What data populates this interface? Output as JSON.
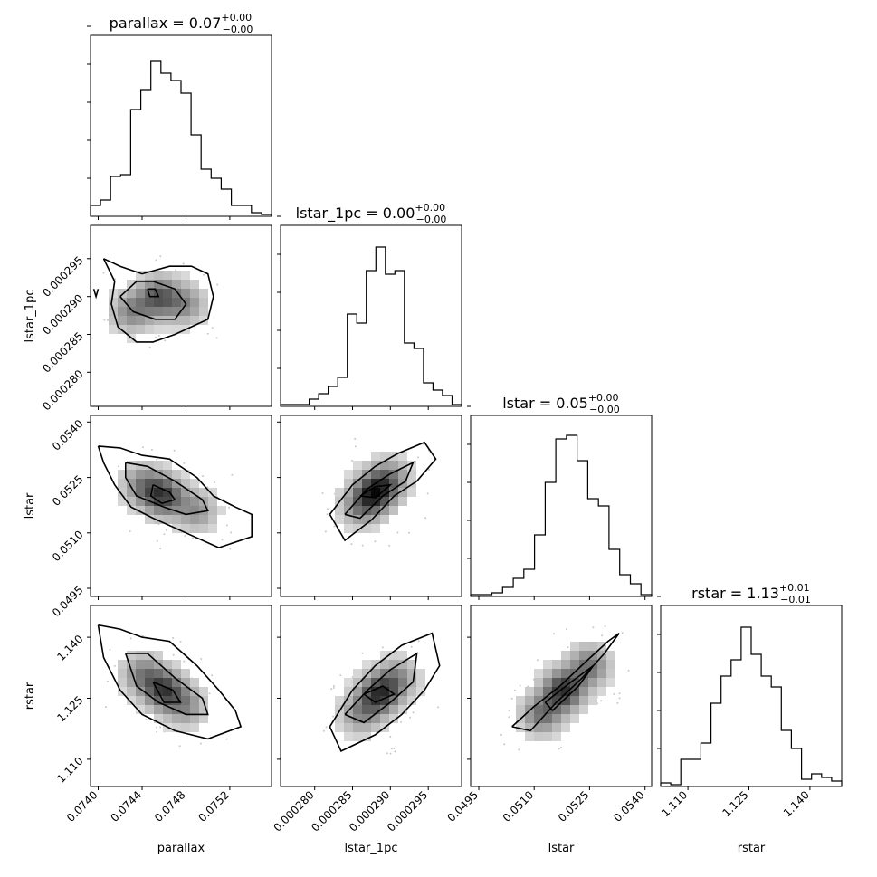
{
  "chart_data": {
    "type": "corner",
    "parameters": [
      "parallax",
      "lstar_1pc",
      "lstar",
      "rstar"
    ],
    "axis_labels": [
      "parallax",
      "lstar_1pc",
      "lstar",
      "rstar"
    ],
    "titles": [
      {
        "name": "parallax",
        "value": "0.07",
        "plus": "+0.00",
        "minus": "−0.00"
      },
      {
        "name": "lstar_1pc",
        "value": "0.00",
        "plus": "+0.00",
        "minus": "−0.00"
      },
      {
        "name": "lstar",
        "value": "0.05",
        "plus": "+0.00",
        "minus": "−0.00"
      },
      {
        "name": "rstar",
        "value": "1.13",
        "plus": "+0.01",
        "minus": "−0.01"
      }
    ],
    "ranges": [
      [
        0.07393,
        0.07558
      ],
      [
        0.0002755,
        0.0002994
      ],
      [
        0.04928,
        0.05418
      ],
      [
        1.1033,
        1.1478
      ]
    ],
    "ticks": [
      {
        "values": [
          0.074,
          0.0744,
          0.0748,
          0.0752
        ],
        "labels": [
          "0.0740",
          "0.0744",
          "0.0748",
          "0.0752"
        ]
      },
      {
        "values": [
          0.00028,
          0.000285,
          0.00029,
          0.000295
        ],
        "labels": [
          "0.000280",
          "0.000285",
          "0.000290",
          "0.000295"
        ]
      },
      {
        "values": [
          0.0495,
          0.051,
          0.0525,
          0.054
        ],
        "labels": [
          "0.0495",
          "0.0510",
          "0.0525",
          "0.0540"
        ]
      },
      {
        "values": [
          1.11,
          1.125,
          1.14
        ],
        "labels": [
          "1.110",
          "1.125",
          "1.140"
        ]
      }
    ],
    "histograms": [
      [
        0.06,
        0.09,
        0.22,
        0.23,
        0.59,
        0.7,
        0.86,
        0.79,
        0.75,
        0.68,
        0.45,
        0.26,
        0.21,
        0.15,
        0.06,
        0.06,
        0.02,
        0.01
      ],
      [
        0.01,
        0.01,
        0.01,
        0.04,
        0.07,
        0.11,
        0.16,
        0.51,
        0.46,
        0.75,
        0.88,
        0.73,
        0.75,
        0.35,
        0.32,
        0.13,
        0.09,
        0.06,
        0.01
      ],
      [
        0.01,
        0.01,
        0.02,
        0.05,
        0.1,
        0.15,
        0.34,
        0.63,
        0.87,
        0.89,
        0.75,
        0.54,
        0.5,
        0.26,
        0.12,
        0.07,
        0.01
      ],
      [
        0.02,
        0.01,
        0.15,
        0.15,
        0.24,
        0.46,
        0.61,
        0.7,
        0.88,
        0.73,
        0.61,
        0.55,
        0.31,
        0.21,
        0.04,
        0.07,
        0.05,
        0.03
      ]
    ],
    "contours": {
      "1-0": [
        [
          [
            0.07396,
            0.000291
          ],
          [
            0.07398,
            0.00029
          ],
          [
            0.074,
            0.000291
          ]
        ],
        [
          [
            0.07405,
            0.000295
          ],
          [
            0.0742,
            0.000294
          ],
          [
            0.0744,
            0.000293
          ],
          [
            0.07465,
            0.000294
          ],
          [
            0.07485,
            0.000294
          ],
          [
            0.075,
            0.000293
          ],
          [
            0.07505,
            0.00029
          ],
          [
            0.075,
            0.000287
          ],
          [
            0.07485,
            0.000286
          ],
          [
            0.0747,
            0.000285
          ],
          [
            0.0745,
            0.000284
          ],
          [
            0.07435,
            0.000284
          ],
          [
            0.07418,
            0.000286
          ],
          [
            0.07412,
            0.000289
          ],
          [
            0.07415,
            0.000292
          ],
          [
            0.07405,
            0.000295
          ]
        ],
        [
          [
            0.0742,
            0.00029
          ],
          [
            0.07435,
            0.000292
          ],
          [
            0.0745,
            0.000292
          ],
          [
            0.0747,
            0.000291
          ],
          [
            0.0748,
            0.000289
          ],
          [
            0.0747,
            0.000287
          ],
          [
            0.07452,
            0.000287
          ],
          [
            0.07432,
            0.000288
          ],
          [
            0.0742,
            0.00029
          ]
        ],
        [
          [
            0.07445,
            0.000291
          ],
          [
            0.07452,
            0.000291
          ],
          [
            0.07455,
            0.00029
          ],
          [
            0.07447,
            0.00029
          ],
          [
            0.07445,
            0.000291
          ]
        ]
      ],
      "2-0": [
        [
          [
            0.074,
            0.05335
          ],
          [
            0.0742,
            0.0533
          ],
          [
            0.0744,
            0.0531
          ],
          [
            0.07465,
            0.053
          ],
          [
            0.0749,
            0.0525
          ],
          [
            0.07505,
            0.052
          ],
          [
            0.07525,
            0.0517
          ],
          [
            0.0754,
            0.0515
          ],
          [
            0.0754,
            0.0509
          ],
          [
            0.0751,
            0.0506
          ],
          [
            0.0748,
            0.051
          ],
          [
            0.0745,
            0.0514
          ],
          [
            0.0743,
            0.0517
          ],
          [
            0.07415,
            0.0523
          ],
          [
            0.07405,
            0.0529
          ],
          [
            0.074,
            0.05335
          ]
        ],
        [
          [
            0.07425,
            0.0529
          ],
          [
            0.07445,
            0.0528
          ],
          [
            0.0747,
            0.0524
          ],
          [
            0.07495,
            0.0519
          ],
          [
            0.075,
            0.0516
          ],
          [
            0.0748,
            0.0515
          ],
          [
            0.0746,
            0.0517
          ],
          [
            0.07435,
            0.052
          ],
          [
            0.07425,
            0.0525
          ],
          [
            0.07425,
            0.0529
          ]
        ],
        [
          [
            0.0745,
            0.0523
          ],
          [
            0.07465,
            0.0521
          ],
          [
            0.0747,
            0.0519
          ],
          [
            0.07458,
            0.0518
          ],
          [
            0.07448,
            0.052
          ],
          [
            0.0745,
            0.0523
          ]
        ]
      ],
      "2-1": [
        [
          [
            0.000282,
            0.0515
          ],
          [
            0.000285,
            0.0523
          ],
          [
            0.000288,
            0.0528
          ],
          [
            0.000291,
            0.05315
          ],
          [
            0.0002945,
            0.05345
          ],
          [
            0.000296,
            0.053
          ],
          [
            0.0002935,
            0.0524
          ],
          [
            0.0002905,
            0.052
          ],
          [
            0.0002875,
            0.05135
          ],
          [
            0.000284,
            0.0508
          ],
          [
            0.000282,
            0.0515
          ]
        ],
        [
          [
            0.000284,
            0.0515
          ],
          [
            0.000287,
            0.0522
          ],
          [
            0.00029,
            0.0526
          ],
          [
            0.000293,
            0.0529
          ],
          [
            0.000292,
            0.0524
          ],
          [
            0.000289,
            0.052
          ],
          [
            0.000286,
            0.0514
          ],
          [
            0.000284,
            0.0515
          ]
        ],
        [
          [
            0.000286,
            0.052
          ],
          [
            0.000288,
            0.05225
          ],
          [
            0.00029,
            0.0523
          ],
          [
            0.000288,
            0.05195
          ],
          [
            0.000286,
            0.052
          ]
        ]
      ],
      "2-2": [
        [
          [
            0.0507,
            0.051
          ],
          [
            0.0513,
            0.0515
          ],
          [
            0.0519,
            0.052
          ],
          [
            0.0525,
            0.0526
          ],
          [
            0.053,
            0.053
          ],
          [
            0.0533,
            0.0532
          ],
          [
            0.0529,
            0.0527
          ],
          [
            0.0524,
            0.0522
          ],
          [
            0.0517,
            0.0516
          ],
          [
            0.051,
            0.0509
          ],
          [
            0.0507,
            0.051
          ]
        ]
      ],
      "3-0": [
        [
          [
            0.074,
            1.143
          ],
          [
            0.0742,
            1.142
          ],
          [
            0.0744,
            1.14
          ],
          [
            0.07465,
            1.139
          ],
          [
            0.0749,
            1.133
          ],
          [
            0.0751,
            1.127
          ],
          [
            0.07525,
            1.122
          ],
          [
            0.0753,
            1.118
          ],
          [
            0.075,
            1.115
          ],
          [
            0.0747,
            1.117
          ],
          [
            0.0744,
            1.121
          ],
          [
            0.0742,
            1.127
          ],
          [
            0.07405,
            1.135
          ],
          [
            0.074,
            1.143
          ]
        ],
        [
          [
            0.07425,
            1.136
          ],
          [
            0.07445,
            1.136
          ],
          [
            0.0747,
            1.13
          ],
          [
            0.07495,
            1.125
          ],
          [
            0.075,
            1.121
          ],
          [
            0.0748,
            1.121
          ],
          [
            0.07455,
            1.124
          ],
          [
            0.07435,
            1.128
          ],
          [
            0.07425,
            1.136
          ]
        ],
        [
          [
            0.0745,
            1.129
          ],
          [
            0.07468,
            1.127
          ],
          [
            0.07475,
            1.124
          ],
          [
            0.0746,
            1.124
          ],
          [
            0.0745,
            1.129
          ]
        ]
      ],
      "3-1": [
        [
          [
            0.000282,
            1.118
          ],
          [
            0.000285,
            1.127
          ],
          [
            0.000288,
            1.133
          ],
          [
            0.0002915,
            1.138
          ],
          [
            0.0002955,
            1.141
          ],
          [
            0.0002965,
            1.133
          ],
          [
            0.0002945,
            1.127
          ],
          [
            0.0002915,
            1.121
          ],
          [
            0.000288,
            1.116
          ],
          [
            0.0002835,
            1.112
          ],
          [
            0.000282,
            1.118
          ]
        ],
        [
          [
            0.000284,
            1.121
          ],
          [
            0.000287,
            1.127
          ],
          [
            0.00029,
            1.132
          ],
          [
            0.0002935,
            1.136
          ],
          [
            0.000293,
            1.129
          ],
          [
            0.00029,
            1.124
          ],
          [
            0.0002865,
            1.119
          ],
          [
            0.000284,
            1.121
          ]
        ],
        [
          [
            0.0002865,
            1.126
          ],
          [
            0.000289,
            1.128
          ],
          [
            0.0002905,
            1.126
          ],
          [
            0.000288,
            1.124
          ],
          [
            0.0002865,
            1.126
          ]
        ]
      ],
      "3-2": [
        [
          [
            0.0504,
            1.118
          ],
          [
            0.051,
            1.123
          ],
          [
            0.0517,
            1.128
          ],
          [
            0.0524,
            1.134
          ],
          [
            0.053,
            1.139
          ],
          [
            0.0533,
            1.141
          ],
          [
            0.0529,
            1.136
          ],
          [
            0.0523,
            1.13
          ],
          [
            0.0516,
            1.124
          ],
          [
            0.0509,
            1.117
          ],
          [
            0.0504,
            1.118
          ]
        ],
        [
          [
            0.0513,
            1.124
          ],
          [
            0.052,
            1.129
          ],
          [
            0.0526,
            1.133
          ],
          [
            0.0522,
            1.128
          ],
          [
            0.0515,
            1.122
          ],
          [
            0.0513,
            1.124
          ]
        ]
      ]
    },
    "density_peaks": {
      "1-0": [
        [
          0.07455,
          0.00029,
          0.7
        ],
        [
          0.0743,
          0.000288,
          0.5
        ],
        [
          0.0748,
          0.000289,
          0.45
        ]
      ],
      "2-0": [
        [
          0.0746,
          0.052,
          0.8
        ],
        [
          0.0744,
          0.0523,
          0.5
        ],
        [
          0.0749,
          0.0516,
          0.45
        ]
      ],
      "2-1": [
        [
          0.000288,
          0.0521,
          0.85
        ],
        [
          0.00029,
          0.0525,
          0.45
        ],
        [
          0.000286,
          0.0517,
          0.45
        ]
      ],
      "2-2": [
        [
          0.052,
          0.052,
          0.9
        ],
        [
          0.0514,
          0.0514,
          0.6
        ],
        [
          0.0526,
          0.0526,
          0.6
        ]
      ],
      "3-0": [
        [
          0.0746,
          1.127,
          0.8
        ],
        [
          0.0744,
          1.131,
          0.5
        ],
        [
          0.0748,
          1.123,
          0.45
        ]
      ],
      "3-1": [
        [
          0.0002885,
          1.126,
          0.85
        ],
        [
          0.000291,
          1.13,
          0.45
        ],
        [
          0.000286,
          1.121,
          0.45
        ]
      ],
      "3-2": [
        [
          0.0518,
          1.127,
          0.9
        ],
        [
          0.0512,
          1.121,
          0.6
        ],
        [
          0.0525,
          1.133,
          0.6
        ]
      ]
    }
  }
}
